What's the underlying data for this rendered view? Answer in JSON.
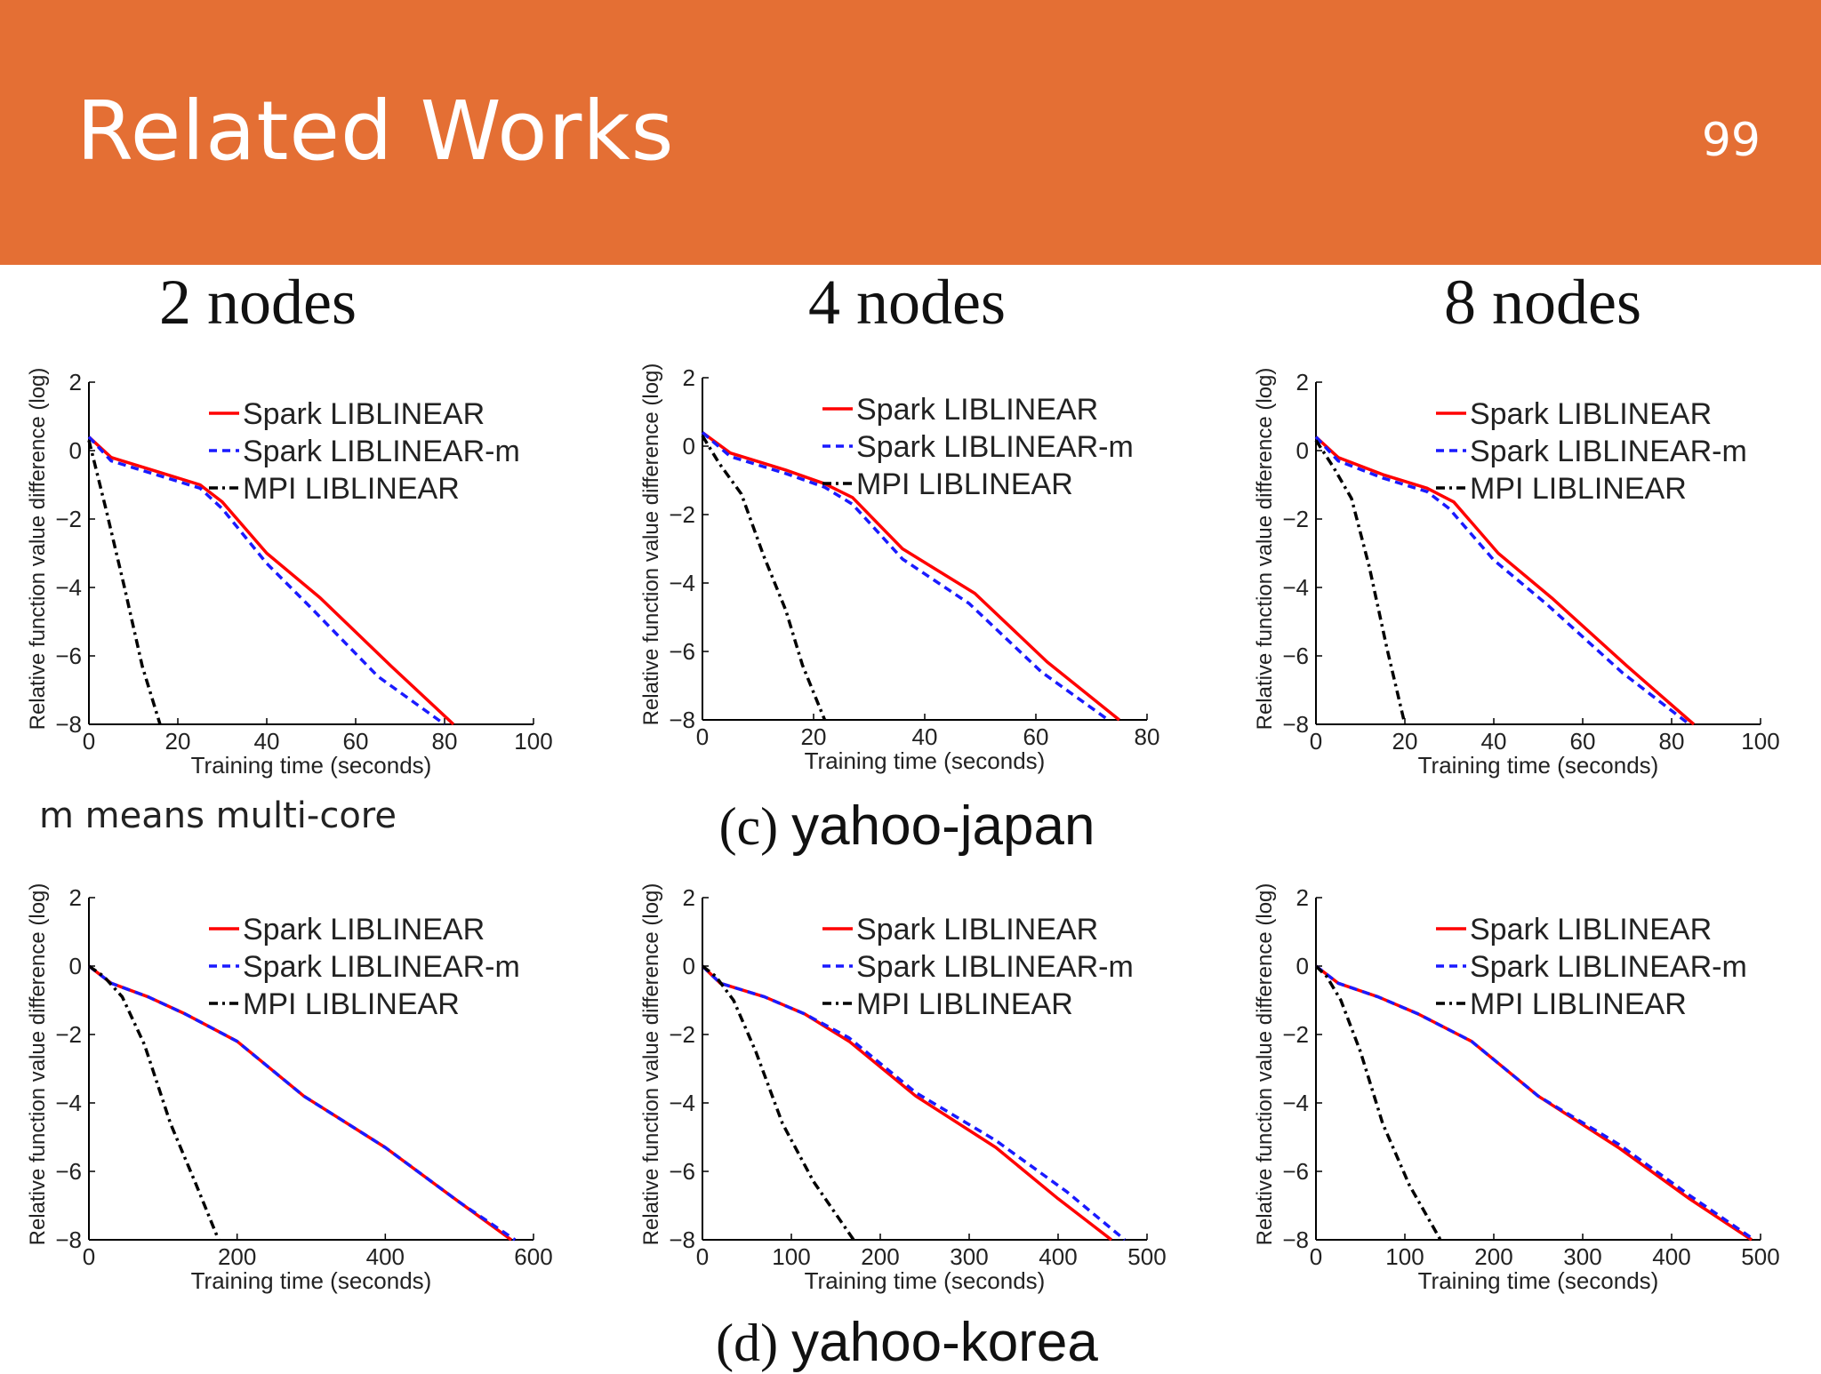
{
  "slide": {
    "title": "Related Works",
    "page_number": "99",
    "column_titles": [
      "2 nodes",
      "4 nodes",
      "8 nodes"
    ],
    "captions": [
      {
        "label": "(c)",
        "name": "yahoo-japan"
      },
      {
        "label": "(d)",
        "name": "yahoo-korea"
      }
    ],
    "note": "m means multi-core"
  },
  "colors": {
    "header": "#E46F34",
    "spark": "#FF0000",
    "spark_m": "#1A1AFF",
    "mpi": "#000000"
  },
  "chart_data": [
    {
      "type": "line",
      "dataset": "yahoo-japan",
      "nodes": 2,
      "xlabel": "Training time (seconds)",
      "ylabel": "Relative function value difference (log)",
      "xlim": [
        0,
        100
      ],
      "ylim": [
        -8,
        2
      ],
      "xticks": [
        0,
        20,
        40,
        60,
        80,
        100
      ],
      "yticks": [
        -8,
        -6,
        -4,
        -2,
        0,
        2
      ],
      "legend_position": "top-right",
      "series": [
        {
          "name": "Spark LIBLINEAR",
          "style": "solid",
          "color": "#FF0000",
          "x": [
            0,
            5,
            15,
            25,
            30,
            40,
            52,
            68,
            82
          ],
          "y": [
            0.4,
            -0.2,
            -0.6,
            -1.0,
            -1.5,
            -3.0,
            -4.3,
            -6.3,
            -8.0
          ]
        },
        {
          "name": "Spark LIBLINEAR-m",
          "style": "dashed",
          "color": "#1A1AFF",
          "x": [
            0,
            5,
            15,
            25,
            30,
            40,
            50,
            65,
            80
          ],
          "y": [
            0.4,
            -0.3,
            -0.7,
            -1.1,
            -1.7,
            -3.3,
            -4.6,
            -6.6,
            -8.0
          ]
        },
        {
          "name": "MPI LIBLINEAR",
          "style": "dashdot",
          "color": "#000000",
          "x": [
            0,
            4,
            8,
            12,
            16
          ],
          "y": [
            0.3,
            -1.8,
            -4.0,
            -6.3,
            -8.0
          ]
        }
      ]
    },
    {
      "type": "line",
      "dataset": "yahoo-japan",
      "nodes": 4,
      "xlabel": "Training time (seconds)",
      "ylabel": "Relative function value difference (log)",
      "xlim": [
        0,
        80
      ],
      "ylim": [
        -8,
        2
      ],
      "xticks": [
        0,
        20,
        40,
        60,
        80
      ],
      "yticks": [
        -8,
        -6,
        -4,
        -2,
        0,
        2
      ],
      "legend_position": "top-right",
      "series": [
        {
          "name": "Spark LIBLINEAR",
          "style": "solid",
          "color": "#FF0000",
          "x": [
            0,
            5,
            15,
            22,
            27,
            36,
            49,
            62,
            75
          ],
          "y": [
            0.4,
            -0.2,
            -0.7,
            -1.1,
            -1.5,
            -3.0,
            -4.3,
            -6.3,
            -8.0
          ]
        },
        {
          "name": "Spark LIBLINEAR-m",
          "style": "dashed",
          "color": "#1A1AFF",
          "x": [
            0,
            5,
            15,
            22,
            27,
            36,
            48,
            61,
            73
          ],
          "y": [
            0.4,
            -0.3,
            -0.8,
            -1.2,
            -1.7,
            -3.3,
            -4.6,
            -6.6,
            -8.0
          ]
        },
        {
          "name": "MPI LIBLINEAR",
          "style": "dashdot",
          "color": "#000000",
          "x": [
            0,
            3,
            7,
            11,
            15,
            18,
            22
          ],
          "y": [
            0.3,
            -0.5,
            -1.4,
            -3.2,
            -4.8,
            -6.4,
            -8.0
          ]
        }
      ]
    },
    {
      "type": "line",
      "dataset": "yahoo-japan",
      "nodes": 8,
      "xlabel": "Training time (seconds)",
      "ylabel": "Relative function value difference (log)",
      "xlim": [
        0,
        100
      ],
      "ylim": [
        -8,
        2
      ],
      "xticks": [
        0,
        20,
        40,
        60,
        80,
        100
      ],
      "yticks": [
        -8,
        -6,
        -4,
        -2,
        0,
        2
      ],
      "legend_position": "top-right",
      "series": [
        {
          "name": "Spark LIBLINEAR",
          "style": "solid",
          "color": "#FF0000",
          "x": [
            0,
            5,
            15,
            25,
            31,
            41,
            53,
            70,
            85
          ],
          "y": [
            0.4,
            -0.2,
            -0.7,
            -1.1,
            -1.5,
            -3.0,
            -4.3,
            -6.3,
            -8.0
          ]
        },
        {
          "name": "Spark LIBLINEAR-m",
          "style": "dashed",
          "color": "#1A1AFF",
          "x": [
            0,
            5,
            15,
            25,
            30,
            40,
            52,
            69,
            84
          ],
          "y": [
            0.4,
            -0.3,
            -0.8,
            -1.2,
            -1.7,
            -3.2,
            -4.5,
            -6.5,
            -8.0
          ]
        },
        {
          "name": "MPI LIBLINEAR",
          "style": "dashdot",
          "color": "#000000",
          "x": [
            0,
            4,
            8,
            12,
            16,
            20
          ],
          "y": [
            0.3,
            -0.5,
            -1.4,
            -3.4,
            -5.8,
            -8.0
          ]
        }
      ]
    },
    {
      "type": "line",
      "dataset": "yahoo-korea",
      "nodes": 2,
      "xlabel": "Training time (seconds)",
      "ylabel": "Relative function value difference (log)",
      "xlim": [
        0,
        600
      ],
      "ylim": [
        -8,
        2
      ],
      "xticks": [
        0,
        200,
        400,
        600
      ],
      "yticks": [
        -8,
        -6,
        -4,
        -2,
        0,
        2
      ],
      "legend_position": "top-right",
      "series": [
        {
          "name": "Spark LIBLINEAR",
          "style": "solid",
          "color": "#FF0000",
          "x": [
            0,
            30,
            80,
            130,
            200,
            290,
            400,
            500,
            570
          ],
          "y": [
            0,
            -0.5,
            -0.9,
            -1.4,
            -2.2,
            -3.8,
            -5.3,
            -6.9,
            -8.0
          ]
        },
        {
          "name": "Spark LIBLINEAR-m",
          "style": "dashed",
          "color": "#1A1AFF",
          "x": [
            0,
            30,
            80,
            130,
            200,
            290,
            400,
            500,
            575
          ],
          "y": [
            0,
            -0.5,
            -0.9,
            -1.4,
            -2.2,
            -3.8,
            -5.3,
            -6.9,
            -8.0
          ]
        },
        {
          "name": "MPI LIBLINEAR",
          "style": "dashdot",
          "color": "#000000",
          "x": [
            0,
            20,
            45,
            75,
            110,
            145,
            175
          ],
          "y": [
            0,
            -0.3,
            -0.9,
            -2.3,
            -4.6,
            -6.4,
            -8.0
          ]
        }
      ]
    },
    {
      "type": "line",
      "dataset": "yahoo-korea",
      "nodes": 4,
      "xlabel": "Training time (seconds)",
      "ylabel": "Relative function value difference (log)",
      "xlim": [
        0,
        500
      ],
      "ylim": [
        -8,
        2
      ],
      "xticks": [
        0,
        100,
        200,
        300,
        400,
        500
      ],
      "yticks": [
        -8,
        -6,
        -4,
        -2,
        0,
        2
      ],
      "legend_position": "top-right",
      "series": [
        {
          "name": "Spark LIBLINEAR",
          "style": "solid",
          "color": "#FF0000",
          "x": [
            0,
            20,
            70,
            115,
            165,
            240,
            330,
            400,
            460
          ],
          "y": [
            0,
            -0.5,
            -0.9,
            -1.4,
            -2.2,
            -3.8,
            -5.3,
            -6.8,
            -8.0
          ]
        },
        {
          "name": "Spark LIBLINEAR-m",
          "style": "dashed",
          "color": "#1A1AFF",
          "x": [
            0,
            20,
            70,
            115,
            165,
            240,
            330,
            410,
            475
          ],
          "y": [
            0,
            -0.5,
            -0.9,
            -1.4,
            -2.1,
            -3.7,
            -5.1,
            -6.6,
            -8.0
          ]
        },
        {
          "name": "MPI LIBLINEAR",
          "style": "dashdot",
          "color": "#000000",
          "x": [
            0,
            15,
            35,
            60,
            90,
            125,
            170
          ],
          "y": [
            0,
            -0.3,
            -1.0,
            -2.5,
            -4.6,
            -6.3,
            -8.0
          ]
        }
      ]
    },
    {
      "type": "line",
      "dataset": "yahoo-korea",
      "nodes": 8,
      "xlabel": "Training time (seconds)",
      "ylabel": "Relative function value difference (log)",
      "xlim": [
        0,
        500
      ],
      "ylim": [
        -8,
        2
      ],
      "xticks": [
        0,
        100,
        200,
        300,
        400,
        500
      ],
      "yticks": [
        -8,
        -6,
        -4,
        -2,
        0,
        2
      ],
      "legend_position": "top-right",
      "series": [
        {
          "name": "Spark LIBLINEAR",
          "style": "solid",
          "color": "#FF0000",
          "x": [
            0,
            25,
            70,
            115,
            175,
            250,
            340,
            420,
            490
          ],
          "y": [
            0,
            -0.5,
            -0.9,
            -1.4,
            -2.2,
            -3.8,
            -5.3,
            -6.8,
            -8.0
          ]
        },
        {
          "name": "Spark LIBLINEAR-m",
          "style": "dashed",
          "color": "#1A1AFF",
          "x": [
            0,
            25,
            70,
            115,
            175,
            250,
            340,
            420,
            493
          ],
          "y": [
            0,
            -0.5,
            -0.9,
            -1.4,
            -2.2,
            -3.8,
            -5.2,
            -6.7,
            -8.0
          ]
        },
        {
          "name": "MPI LIBLINEAR",
          "style": "dashdot",
          "color": "#000000",
          "x": [
            0,
            12,
            28,
            50,
            75,
            105,
            140
          ],
          "y": [
            0,
            -0.3,
            -1.0,
            -2.5,
            -4.6,
            -6.4,
            -8.0
          ]
        }
      ]
    }
  ]
}
